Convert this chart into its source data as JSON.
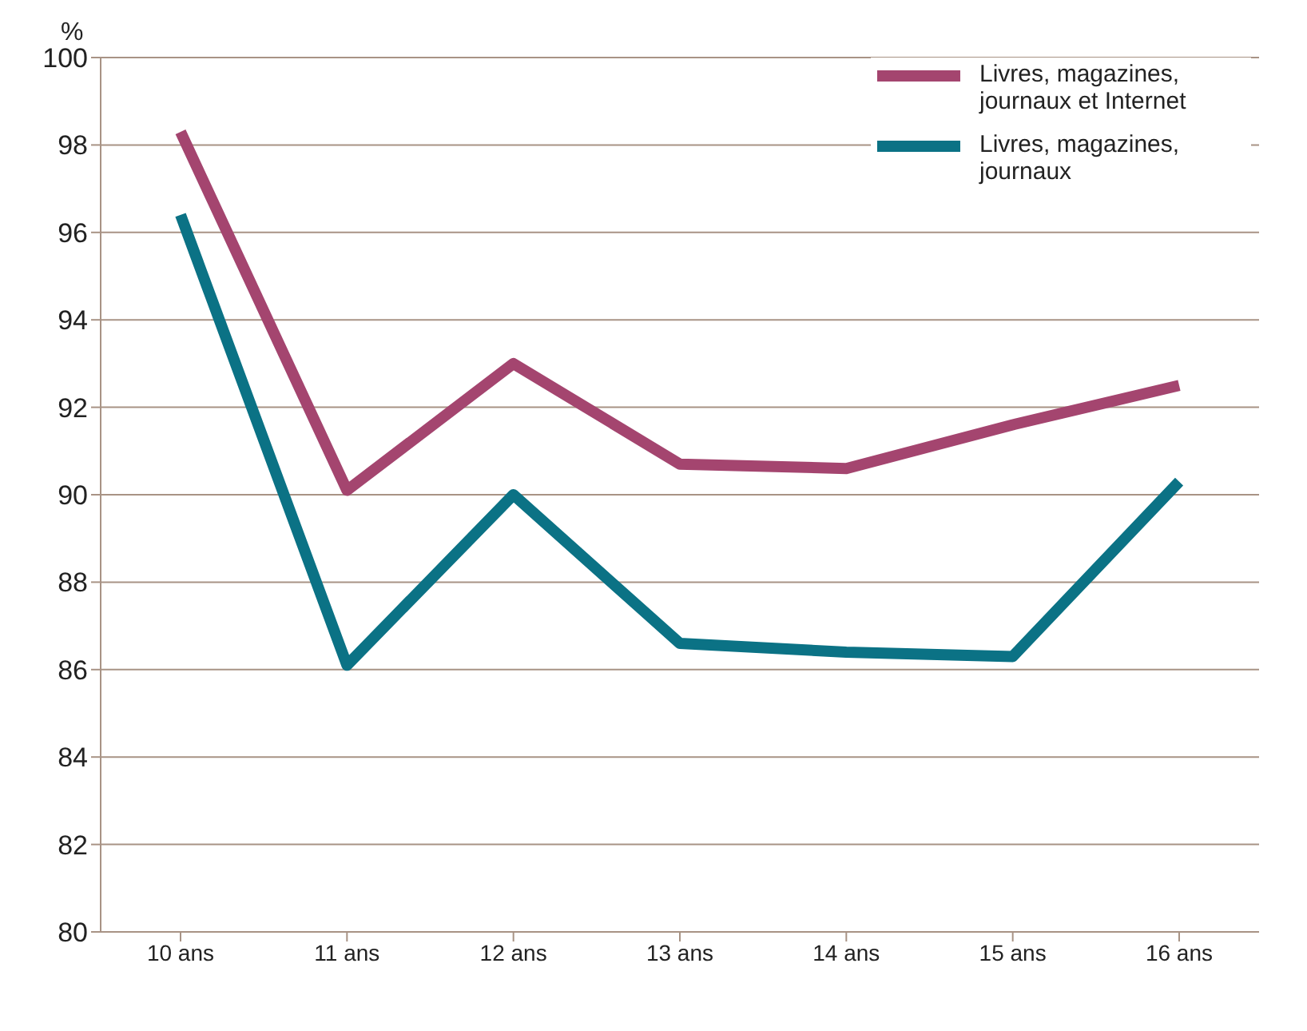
{
  "chart_data": {
    "type": "line",
    "ylabel": "%",
    "categories": [
      "10 ans",
      "11 ans",
      "12 ans",
      "13 ans",
      "14 ans",
      "15 ans",
      "16 ans"
    ],
    "series": [
      {
        "name": "Livres, magazines, journaux et Internet",
        "color": "#a4456f",
        "values": [
          98.3,
          90.1,
          93.0,
          90.7,
          90.6,
          91.6,
          92.5
        ]
      },
      {
        "name": "Livres, magazines, journaux",
        "color": "#0b7285",
        "values": [
          96.4,
          86.1,
          90.0,
          86.6,
          86.4,
          86.3,
          90.3
        ]
      }
    ],
    "ylim": [
      80,
      100
    ],
    "yticks": [
      80,
      82,
      84,
      86,
      88,
      90,
      92,
      94,
      96,
      98,
      100
    ],
    "grid": "y",
    "legend": "top right",
    "marker": "none",
    "line_style": "solid"
  }
}
